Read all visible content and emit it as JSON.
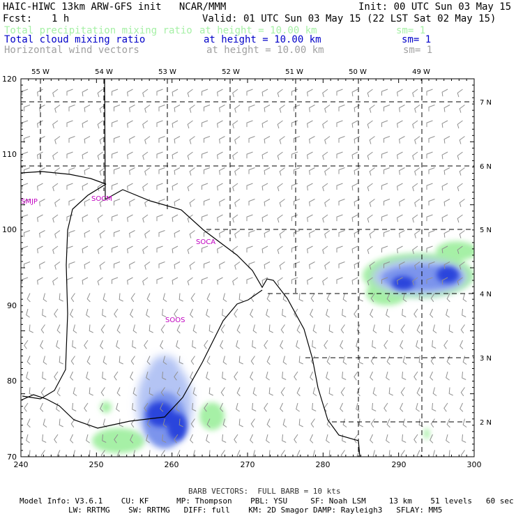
{
  "header": {
    "title": "HAIC-HIWC 13km ARW-GFS init   NCAR/MMM",
    "init": "Init: 00 UTC Sun 03 May 15",
    "fcst_label": "Fcst:",
    "fcst_value": "1 h",
    "valid": "Valid: 01 UTC Sun 03 May 15 (22 LST Sat 02 May 15)"
  },
  "fields": [
    {
      "name": "Total precipitation mixing ratio",
      "height": "at height = 10.00 km",
      "sm": "sm= 1",
      "color": "#a6f0a6"
    },
    {
      "name": "Total cloud mixing ratio",
      "height": "at height = 10.00 km",
      "sm": "sm= 1",
      "color": "#0000c8"
    },
    {
      "name": "Horizontal wind vectors",
      "height": "at height = 10.00 km",
      "sm": "sm= 1",
      "color": "#a0a0a0"
    }
  ],
  "map": {
    "top_lon_labels": [
      "55 W",
      "54 W",
      "53 W",
      "52 W",
      "51 W",
      "50 W",
      "49 W"
    ],
    "right_lat_labels": [
      "7 N",
      "6 N",
      "5 N",
      "4 N",
      "3 N",
      "2 N"
    ],
    "left_y_ticks": [
      "120",
      "110",
      "100",
      "90",
      "80",
      "70"
    ],
    "bottom_x_ticks": [
      "240",
      "250",
      "260",
      "270",
      "280",
      "290",
      "300"
    ],
    "stations": [
      "SMJP",
      "SOCM",
      "SOCA",
      "SOOS"
    ],
    "colors": {
      "coast": "#000000",
      "precip": "#a6f0a6",
      "cloud": "#2040e0",
      "station": "#c000c0",
      "barb": "#909090"
    }
  },
  "footer": {
    "barb": "BARB VECTORS:  FULL BARB = 10 kts",
    "line1": "Model Info: V3.6.1    CU: KF      MP: Thompson    PBL: YSU     SF: Noah LSM     13 km    51 levels   60 sec",
    "line2": "LW: RRTMG    SW: RRTMG   DIFF: full    KM: 2D Smagor DAMP: Rayleigh3   SFLAY: MM5"
  }
}
